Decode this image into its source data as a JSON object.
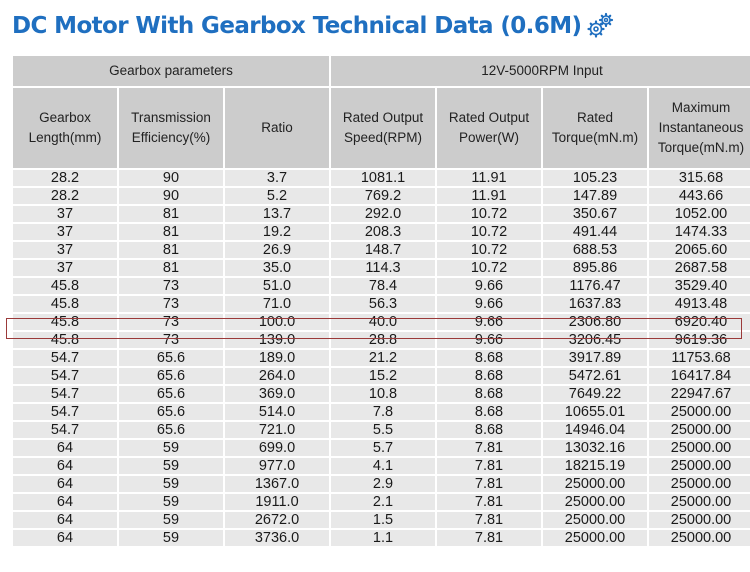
{
  "title": "DC Motor With Gearbox Technical Data (0.6M)",
  "icons": {
    "title_icon": "gears-icon",
    "accent": "#1f6fc0"
  },
  "headers": {
    "group_left": "Gearbox parameters",
    "group_right": "12V-5000RPM Input",
    "col1": "Gearbox Length(mm)",
    "col2": "Transmission Efficiency(%)",
    "col3": "Ratio",
    "col4": "Rated Output Speed(RPM)",
    "col5": "Rated Output Power(W)",
    "col6": "Rated Torque(mN.m)",
    "col7": "Maximum Instantaneous Torque(mN.m)"
  },
  "highlight": {
    "row_index": 8,
    "color": "#9b3a3a"
  },
  "rows": [
    [
      "28.2",
      "90",
      "3.7",
      "1081.1",
      "11.91",
      "105.23",
      "315.68"
    ],
    [
      "28.2",
      "90",
      "5.2",
      "769.2",
      "11.91",
      "147.89",
      "443.66"
    ],
    [
      "37",
      "81",
      "13.7",
      "292.0",
      "10.72",
      "350.67",
      "1052.00"
    ],
    [
      "37",
      "81",
      "19.2",
      "208.3",
      "10.72",
      "491.44",
      "1474.33"
    ],
    [
      "37",
      "81",
      "26.9",
      "148.7",
      "10.72",
      "688.53",
      "2065.60"
    ],
    [
      "37",
      "81",
      "35.0",
      "114.3",
      "10.72",
      "895.86",
      "2687.58"
    ],
    [
      "45.8",
      "73",
      "51.0",
      "78.4",
      "9.66",
      "1176.47",
      "3529.40"
    ],
    [
      "45.8",
      "73",
      "71.0",
      "56.3",
      "9.66",
      "1637.83",
      "4913.48"
    ],
    [
      "45.8",
      "73",
      "100.0",
      "40.0",
      "9.66",
      "2306.80",
      "6920.40"
    ],
    [
      "45.8",
      "73",
      "139.0",
      "28.8",
      "9.66",
      "3206.45",
      "9619.36"
    ],
    [
      "54.7",
      "65.6",
      "189.0",
      "21.2",
      "8.68",
      "3917.89",
      "11753.68"
    ],
    [
      "54.7",
      "65.6",
      "264.0",
      "15.2",
      "8.68",
      "5472.61",
      "16417.84"
    ],
    [
      "54.7",
      "65.6",
      "369.0",
      "10.8",
      "8.68",
      "7649.22",
      "22947.67"
    ],
    [
      "54.7",
      "65.6",
      "514.0",
      "7.8",
      "8.68",
      "10655.01",
      "25000.00"
    ],
    [
      "54.7",
      "65.6",
      "721.0",
      "5.5",
      "8.68",
      "14946.04",
      "25000.00"
    ],
    [
      "64",
      "59",
      "699.0",
      "5.7",
      "7.81",
      "13032.16",
      "25000.00"
    ],
    [
      "64",
      "59",
      "977.0",
      "4.1",
      "7.81",
      "18215.19",
      "25000.00"
    ],
    [
      "64",
      "59",
      "1367.0",
      "2.9",
      "7.81",
      "25000.00",
      "25000.00"
    ],
    [
      "64",
      "59",
      "1911.0",
      "2.1",
      "7.81",
      "25000.00",
      "25000.00"
    ],
    [
      "64",
      "59",
      "2672.0",
      "1.5",
      "7.81",
      "25000.00",
      "25000.00"
    ],
    [
      "64",
      "59",
      "3736.0",
      "1.1",
      "7.81",
      "25000.00",
      "25000.00"
    ]
  ]
}
